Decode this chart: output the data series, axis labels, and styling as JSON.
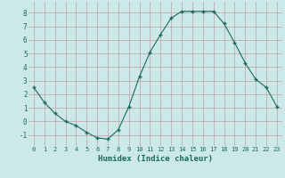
{
  "x": [
    0,
    1,
    2,
    3,
    4,
    5,
    6,
    7,
    8,
    9,
    10,
    11,
    12,
    13,
    14,
    15,
    16,
    17,
    18,
    19,
    20,
    21,
    22,
    23
  ],
  "y": [
    2.5,
    1.4,
    0.6,
    0.0,
    -0.3,
    -0.8,
    -1.2,
    -1.3,
    -0.6,
    1.1,
    3.3,
    5.1,
    6.4,
    7.6,
    8.1,
    8.1,
    8.1,
    8.1,
    7.2,
    5.8,
    4.3,
    3.1,
    2.5,
    1.1
  ],
  "xlabel": "Humidex (Indice chaleur)",
  "ylim": [
    -1.8,
    8.8
  ],
  "xlim": [
    -0.5,
    23.5
  ],
  "line_color": "#1a6b5a",
  "marker": "+",
  "bg_color": "#cce8e8",
  "grid_color": "#c0a0a0",
  "tick_label_color": "#1a6b5a",
  "xlabel_color": "#1a6b5a",
  "yticks": [
    -1,
    0,
    1,
    2,
    3,
    4,
    5,
    6,
    7,
    8
  ],
  "xticks": [
    0,
    1,
    2,
    3,
    4,
    5,
    6,
    7,
    8,
    9,
    10,
    11,
    12,
    13,
    14,
    15,
    16,
    17,
    18,
    19,
    20,
    21,
    22,
    23
  ]
}
